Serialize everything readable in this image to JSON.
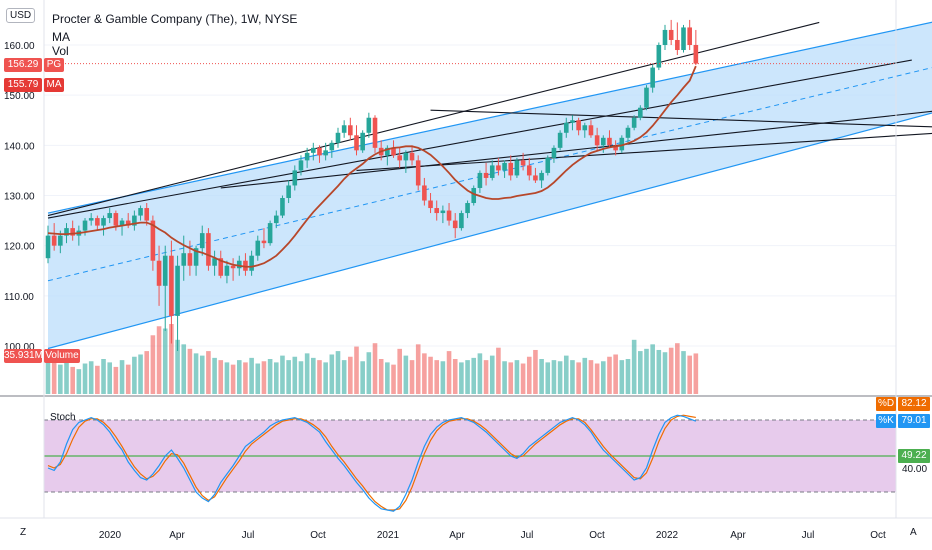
{
  "legend": {
    "title": "Procter & Gamble Company (The), 1W, NYSE",
    "ma_label": "MA",
    "vol_label": "Vol"
  },
  "currency_label": "USD",
  "price_axis": {
    "ticks": [
      "160.00",
      "150.00",
      "140.00",
      "130.00",
      "120.00",
      "110.00",
      "100.00"
    ],
    "tick_values": [
      160,
      150,
      140,
      130,
      120,
      110,
      100
    ]
  },
  "price_tags": {
    "last_price": "156.29",
    "last_price_label": "PG",
    "ma_value": "155.79",
    "ma_label": "MA",
    "volume": "35.931M",
    "volume_label": "Volume"
  },
  "stoch": {
    "label": "Stoch",
    "d_label": "%D",
    "d_value": "82.12",
    "k_label": "%K",
    "k_value": "79.01",
    "mid_value": "49.22",
    "tick": "40.00"
  },
  "time_axis": {
    "labels": [
      "2020",
      "Apr",
      "Jul",
      "Oct",
      "2021",
      "Apr",
      "Jul",
      "Oct",
      "2022",
      "Apr",
      "Jul",
      "Oct"
    ],
    "left_button": "Z",
    "right_button": "A"
  },
  "colors": {
    "up": "#26a69a",
    "down": "#ef5350",
    "ma": "#b7472a",
    "channel_fill": "#bbdefb",
    "channel_line": "#2196f3",
    "stoch_bg": "#e1bee7",
    "stoch_k": "#2196f3",
    "stoch_d": "#ef6c00",
    "stoch_mid": "#4caf50",
    "price_line": "#ef5350"
  },
  "chart_data": {
    "type": "candlestick",
    "interval": "1W",
    "symbol": "PG",
    "ylim": [
      98,
      166
    ],
    "candles": [
      [
        117.5,
        124.0,
        116.5,
        122.0
      ],
      [
        122.0,
        124.5,
        119.0,
        120.0
      ],
      [
        120.0,
        123.0,
        118.5,
        122.0
      ],
      [
        122.0,
        124.5,
        120.5,
        123.5
      ],
      [
        123.5,
        125.0,
        121.0,
        122.0
      ],
      [
        122.0,
        124.0,
        120.0,
        123.0
      ],
      [
        123.0,
        125.5,
        122.0,
        125.0
      ],
      [
        125.0,
        126.5,
        124.0,
        125.5
      ],
      [
        125.5,
        126.0,
        123.0,
        124.0
      ],
      [
        124.0,
        126.0,
        122.0,
        125.5
      ],
      [
        125.5,
        127.5,
        124.5,
        126.5
      ],
      [
        126.5,
        127.0,
        123.0,
        124.0
      ],
      [
        124.0,
        125.5,
        122.0,
        125.0
      ],
      [
        125.0,
        126.5,
        123.5,
        124.0
      ],
      [
        124.0,
        127.0,
        123.0,
        126.0
      ],
      [
        126.0,
        128.0,
        125.0,
        127.5
      ],
      [
        127.5,
        128.5,
        124.0,
        125.0
      ],
      [
        125.0,
        126.0,
        115.0,
        117.0
      ],
      [
        117.0,
        120.0,
        108.0,
        112.0
      ],
      [
        112.0,
        120.0,
        103.0,
        118.0
      ],
      [
        118.0,
        121.0,
        100.5,
        106.0
      ],
      [
        106.0,
        118.0,
        99.0,
        116.0
      ],
      [
        116.0,
        122.0,
        113.0,
        118.5
      ],
      [
        118.5,
        121.0,
        114.0,
        116.0
      ],
      [
        116.0,
        120.0,
        114.0,
        119.5
      ],
      [
        119.5,
        124.0,
        118.0,
        122.5
      ],
      [
        122.5,
        123.5,
        115.0,
        116.0
      ],
      [
        116.0,
        119.0,
        114.0,
        117.5
      ],
      [
        117.5,
        119.0,
        113.5,
        114.0
      ],
      [
        114.0,
        117.0,
        112.5,
        116.0
      ],
      [
        116.0,
        117.5,
        113.0,
        115.5
      ],
      [
        115.5,
        118.0,
        114.0,
        117.0
      ],
      [
        117.0,
        118.5,
        114.0,
        115.0
      ],
      [
        115.0,
        119.0,
        114.0,
        118.0
      ],
      [
        118.0,
        122.0,
        117.0,
        121.0
      ],
      [
        121.0,
        123.5,
        119.5,
        120.5
      ],
      [
        120.5,
        125.0,
        120.0,
        124.5
      ],
      [
        124.5,
        127.0,
        123.5,
        126.0
      ],
      [
        126.0,
        130.0,
        125.5,
        129.5
      ],
      [
        129.5,
        133.0,
        128.5,
        132.0
      ],
      [
        132.0,
        136.0,
        131.0,
        135.0
      ],
      [
        135.0,
        138.0,
        134.0,
        137.0
      ],
      [
        137.0,
        139.5,
        135.5,
        138.5
      ],
      [
        138.5,
        140.5,
        137.0,
        139.5
      ],
      [
        139.5,
        140.0,
        136.5,
        138.0
      ],
      [
        138.0,
        140.5,
        137.0,
        139.0
      ],
      [
        139.0,
        141.0,
        137.5,
        140.5
      ],
      [
        140.5,
        143.5,
        139.5,
        142.5
      ],
      [
        142.5,
        145.0,
        141.5,
        144.0
      ],
      [
        144.0,
        145.5,
        141.0,
        142.0
      ],
      [
        142.0,
        144.0,
        138.0,
        139.0
      ],
      [
        139.0,
        143.0,
        138.5,
        142.5
      ],
      [
        142.5,
        146.5,
        141.5,
        145.5
      ],
      [
        145.5,
        146.0,
        138.5,
        139.5
      ],
      [
        139.5,
        141.0,
        137.0,
        138.0
      ],
      [
        138.0,
        140.0,
        136.0,
        139.5
      ],
      [
        139.5,
        141.0,
        137.5,
        138.0
      ],
      [
        138.0,
        139.5,
        135.5,
        137.0
      ],
      [
        137.0,
        139.0,
        134.5,
        138.5
      ],
      [
        138.5,
        140.0,
        136.0,
        137.0
      ],
      [
        137.0,
        138.0,
        131.0,
        132.0
      ],
      [
        132.0,
        133.5,
        128.0,
        129.0
      ],
      [
        129.0,
        130.5,
        126.5,
        127.5
      ],
      [
        127.5,
        129.0,
        125.0,
        126.5
      ],
      [
        126.5,
        128.0,
        124.5,
        127.0
      ],
      [
        127.0,
        128.5,
        124.0,
        125.0
      ],
      [
        125.0,
        126.5,
        121.5,
        123.5
      ],
      [
        123.5,
        127.0,
        123.0,
        126.5
      ],
      [
        126.5,
        129.0,
        125.5,
        128.5
      ],
      [
        128.5,
        132.0,
        128.0,
        131.5
      ],
      [
        131.5,
        135.0,
        130.5,
        134.5
      ],
      [
        134.5,
        136.5,
        132.0,
        133.5
      ],
      [
        133.5,
        137.0,
        133.0,
        136.0
      ],
      [
        136.0,
        137.5,
        134.0,
        135.0
      ],
      [
        135.0,
        137.0,
        133.5,
        136.5
      ],
      [
        136.5,
        138.0,
        133.0,
        134.0
      ],
      [
        134.0,
        137.5,
        133.5,
        137.0
      ],
      [
        137.0,
        138.5,
        135.0,
        136.0
      ],
      [
        136.0,
        137.5,
        133.0,
        134.0
      ],
      [
        134.0,
        135.5,
        132.5,
        133.0
      ],
      [
        133.0,
        135.0,
        131.5,
        134.5
      ],
      [
        134.5,
        138.0,
        134.0,
        137.5
      ],
      [
        137.5,
        140.0,
        136.5,
        139.5
      ],
      [
        139.5,
        143.0,
        139.0,
        142.5
      ],
      [
        142.5,
        145.5,
        141.5,
        144.5
      ],
      [
        144.5,
        146.0,
        143.0,
        145.0
      ],
      [
        145.0,
        145.5,
        142.0,
        143.0
      ],
      [
        143.0,
        144.5,
        141.5,
        144.0
      ],
      [
        144.0,
        145.0,
        141.5,
        142.0
      ],
      [
        142.0,
        143.5,
        139.0,
        140.0
      ],
      [
        140.0,
        142.0,
        138.5,
        141.5
      ],
      [
        141.5,
        143.0,
        139.5,
        140.0
      ],
      [
        140.0,
        141.0,
        138.0,
        139.0
      ],
      [
        139.0,
        142.0,
        138.5,
        141.5
      ],
      [
        141.5,
        144.0,
        140.5,
        143.5
      ],
      [
        143.5,
        146.0,
        143.0,
        145.5
      ],
      [
        145.5,
        148.0,
        145.0,
        147.5
      ],
      [
        147.5,
        152.0,
        147.0,
        151.5
      ],
      [
        151.5,
        156.0,
        150.5,
        155.5
      ],
      [
        155.5,
        160.5,
        155.0,
        160.0
      ],
      [
        160.0,
        164.0,
        159.0,
        163.0
      ],
      [
        163.0,
        165.0,
        160.0,
        161.0
      ],
      [
        161.0,
        164.5,
        158.0,
        159.0
      ],
      [
        159.0,
        164.0,
        158.5,
        163.5
      ],
      [
        163.5,
        165.0,
        159.0,
        160.0
      ],
      [
        160.0,
        163.0,
        156.0,
        156.29
      ]
    ],
    "ma_values": [
      122.5,
      122.4,
      122.3,
      122.3,
      122.4,
      122.5,
      122.7,
      122.9,
      123.1,
      123.3,
      123.6,
      123.8,
      124.0,
      124.2,
      124.4,
      124.6,
      124.6,
      124.1,
      123.3,
      122.6,
      121.6,
      120.8,
      120.1,
      119.5,
      118.9,
      118.6,
      118.1,
      117.6,
      117.0,
      116.6,
      116.2,
      116.0,
      115.8,
      115.8,
      116.1,
      116.5,
      117.2,
      118.0,
      119.2,
      120.5,
      122.0,
      123.6,
      125.2,
      126.7,
      128.0,
      129.3,
      130.6,
      131.9,
      133.3,
      134.5,
      135.4,
      136.3,
      137.4,
      138.2,
      138.8,
      139.2,
      139.5,
      139.6,
      139.8,
      139.8,
      139.5,
      138.9,
      138.1,
      137.0,
      135.8,
      134.5,
      133.1,
      132.0,
      131.0,
      130.3,
      129.9,
      129.5,
      129.3,
      129.3,
      129.5,
      129.6,
      129.9,
      130.1,
      130.3,
      130.5,
      130.9,
      131.6,
      132.6,
      133.8,
      135.0,
      136.1,
      137.0,
      137.8,
      138.5,
      138.9,
      139.3,
      139.6,
      139.8,
      140.0,
      140.4,
      140.9,
      141.6,
      142.6,
      143.9,
      145.4,
      147.0,
      148.6,
      150.0,
      151.5,
      152.9,
      155.79
    ],
    "volume_m": [
      32,
      28,
      26,
      30,
      24,
      22,
      27,
      29,
      25,
      31,
      28,
      24,
      30,
      26,
      33,
      35,
      38,
      52,
      60,
      58,
      62,
      48,
      44,
      40,
      36,
      34,
      38,
      32,
      30,
      28,
      26,
      30,
      28,
      32,
      27,
      29,
      31,
      28,
      34,
      30,
      33,
      29,
      36,
      32,
      30,
      28,
      35,
      38,
      30,
      33,
      42,
      29,
      37,
      45,
      31,
      28,
      26,
      40,
      34,
      30,
      44,
      36,
      33,
      30,
      29,
      38,
      31,
      28,
      30,
      32,
      36,
      30,
      34,
      41,
      29,
      28,
      30,
      27,
      33,
      39,
      31,
      28,
      30,
      29,
      34,
      30,
      28,
      32,
      30,
      27,
      29,
      33,
      35,
      30,
      31,
      48,
      38,
      40,
      44,
      39,
      37,
      41,
      45,
      38,
      34,
      35.931
    ],
    "channel": {
      "upper": [
        [
          0,
          126.5
        ],
        [
          145,
          165.0
        ]
      ],
      "lower": [
        [
          0,
          99.5
        ],
        [
          145,
          147.0
        ]
      ],
      "mid": [
        [
          0,
          113.0
        ],
        [
          145,
          156.0
        ]
      ]
    },
    "trendlines": [
      [
        [
          0,
          126.0
        ],
        [
          125,
          164.5
        ]
      ],
      [
        [
          0,
          125.5
        ],
        [
          140,
          157.0
        ]
      ],
      [
        [
          62,
          147.0
        ],
        [
          148,
          143.5
        ]
      ],
      [
        [
          28,
          131.5
        ],
        [
          145,
          147.0
        ]
      ],
      [
        [
          50,
          135.0
        ],
        [
          145,
          142.5
        ]
      ]
    ],
    "stoch_k": [
      40,
      38,
      45,
      60,
      72,
      78,
      80,
      82,
      80,
      76,
      70,
      62,
      55,
      45,
      38,
      32,
      30,
      35,
      42,
      50,
      55,
      48,
      40,
      30,
      20,
      15,
      12,
      18,
      28,
      35,
      42,
      50,
      58,
      62,
      66,
      70,
      75,
      78,
      80,
      81,
      82,
      80,
      78,
      74,
      70,
      62,
      55,
      48,
      42,
      35,
      28,
      22,
      15,
      10,
      6,
      5,
      4,
      8,
      18,
      30,
      45,
      58,
      68,
      74,
      78,
      80,
      81,
      82,
      80,
      78,
      74,
      70,
      65,
      60,
      55,
      50,
      48,
      52,
      58,
      62,
      66,
      70,
      74,
      78,
      80,
      82,
      80,
      76,
      70,
      62,
      55,
      50,
      45,
      40,
      35,
      30,
      32,
      40,
      55,
      68,
      78,
      82,
      84,
      83,
      81,
      79.01
    ],
    "stoch_d": [
      42,
      40,
      43,
      52,
      64,
      74,
      79,
      81,
      81,
      78,
      73,
      66,
      58,
      49,
      41,
      35,
      31,
      33,
      38,
      46,
      52,
      51,
      44,
      34,
      24,
      17,
      13,
      16,
      24,
      32,
      39,
      46,
      54,
      60,
      64,
      68,
      72,
      76,
      79,
      80,
      81,
      81,
      79,
      76,
      72,
      66,
      58,
      51,
      45,
      38,
      31,
      25,
      18,
      12,
      8,
      5,
      5,
      6,
      13,
      24,
      38,
      52,
      63,
      71,
      76,
      79,
      80,
      81,
      81,
      79,
      76,
      72,
      67,
      62,
      57,
      52,
      49,
      50,
      55,
      60,
      64,
      68,
      72,
      76,
      79,
      81,
      81,
      78,
      72,
      65,
      58,
      52,
      47,
      42,
      37,
      32,
      31,
      36,
      48,
      62,
      73,
      80,
      83,
      84,
      83,
      82.12
    ]
  }
}
